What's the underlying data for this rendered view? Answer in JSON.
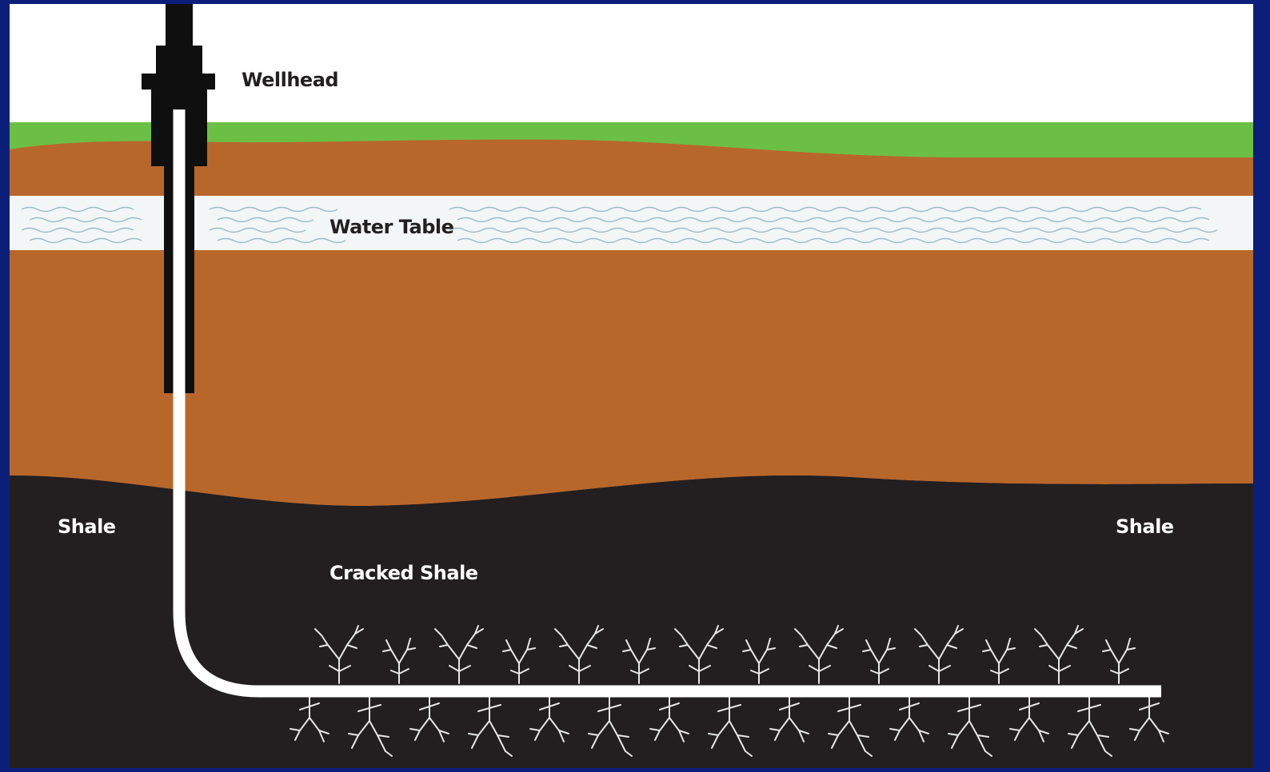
{
  "diagram": {
    "labels": {
      "wellhead": "Wellhead",
      "water_table": "Water Table",
      "shale_left": "Shale",
      "shale_right": "Shale",
      "cracked_shale": "Cracked Shale"
    },
    "colors": {
      "frame": "#0b1f7a",
      "sky": "#ffffff",
      "grass": "#6cbf45",
      "soil": "#b8672a",
      "water_band": "#f3f6f6",
      "water_waves": "#8fb7c4",
      "shale": "#231f20",
      "pipe": "#ffffff",
      "casing": "#0f0f0f",
      "fracture": "#e6e6e6"
    }
  }
}
